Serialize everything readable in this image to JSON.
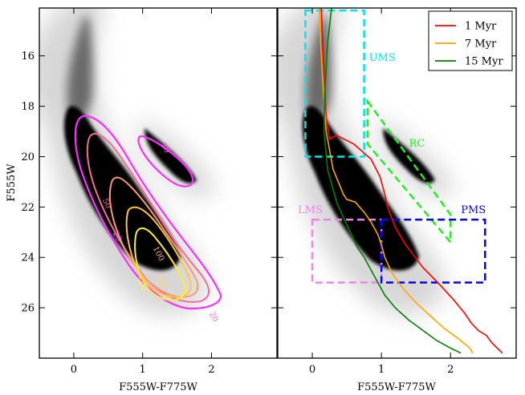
{
  "chart_data": [
    {
      "type": "scatter",
      "panel": "left",
      "title": "",
      "xlabel": "F555W-F775W",
      "ylabel": "F555W",
      "xlim": [
        -0.5,
        2.95
      ],
      "ylim": [
        28,
        14.1
      ],
      "y_inverted": true,
      "xticks": [
        0,
        1,
        2
      ],
      "yticks": [
        16,
        18,
        20,
        22,
        24,
        26
      ],
      "density": "grayscale Hess diagram of stars",
      "contour_labels": [
        {
          "text": "20",
          "x": 1.3,
          "y": 19.7
        },
        {
          "text": "50",
          "x": 0.45,
          "y": 21.9
        },
        {
          "text": "20",
          "x": 0.6,
          "y": 23.2
        },
        {
          "text": "100",
          "x": 1.2,
          "y": 23.9
        },
        {
          "text": "300",
          "x": 1.25,
          "y": 25.0
        },
        {
          "text": "500",
          "x": 0.95,
          "y": 25.1
        },
        {
          "text": "20",
          "x": 2.0,
          "y": 26.4
        }
      ],
      "contour_levels": [
        20,
        50,
        100,
        300,
        500
      ],
      "contour_colors": [
        "#ff2cff",
        "#f86a9a",
        "#fb9a70",
        "#ffc24a",
        "#ffec30"
      ]
    },
    {
      "type": "line",
      "panel": "right",
      "title": "",
      "xlabel": "F555W-F775W",
      "ylabel": "",
      "xlim": [
        -0.5,
        2.95
      ],
      "ylim": [
        28,
        14.1
      ],
      "y_inverted": true,
      "xticks": [
        0,
        1,
        2
      ],
      "legend": "top-right",
      "series": [
        {
          "name": "1 Myr",
          "color": "#ff0000",
          "x": [
            0.13,
            0.15,
            0.18,
            0.2,
            0.25,
            0.35,
            0.6,
            0.85,
            0.98,
            1.05,
            1.1,
            1.2,
            1.35,
            1.6,
            1.85,
            2.05,
            2.2,
            2.3,
            2.4,
            2.52,
            2.6,
            2.75
          ],
          "y": [
            14.1,
            15.5,
            17.0,
            18.5,
            19.3,
            19.15,
            19.5,
            20.1,
            20.8,
            21.5,
            22.1,
            22.8,
            23.5,
            24.4,
            25.1,
            25.7,
            26.2,
            26.6,
            26.9,
            27.1,
            27.4,
            27.8
          ]
        },
        {
          "name": "7 Myr",
          "color": "#ffa500",
          "x": [
            0.1,
            0.12,
            0.15,
            0.2,
            0.3,
            0.45,
            0.5,
            0.62,
            0.75,
            0.85,
            0.95,
            1.0,
            1.05,
            1.15,
            1.3,
            1.5,
            1.7,
            1.9,
            2.1,
            2.28,
            2.32
          ],
          "y": [
            14.1,
            15.5,
            17.0,
            19.0,
            20.5,
            21.5,
            21.7,
            21.8,
            22.2,
            22.6,
            23.1,
            23.5,
            24.0,
            24.6,
            25.2,
            25.8,
            26.3,
            26.8,
            27.2,
            27.6,
            27.8
          ]
        },
        {
          "name": "15 Myr",
          "color": "#008000",
          "x": [
            0.28,
            0.22,
            0.18,
            0.17,
            0.22,
            0.35,
            0.48,
            0.55,
            0.65,
            0.75,
            0.85,
            0.95,
            1.05,
            1.2,
            1.4,
            1.6,
            1.8,
            2.0,
            2.15
          ],
          "y": [
            14.1,
            15.5,
            17.5,
            19.0,
            20.5,
            21.8,
            22.6,
            23.0,
            23.6,
            24.0,
            24.5,
            25.0,
            25.5,
            26.0,
            26.5,
            26.9,
            27.3,
            27.6,
            27.8
          ]
        }
      ],
      "regions": [
        {
          "label": "UMS",
          "color": "#00e5ee",
          "x0": -0.1,
          "x1": 0.75,
          "y0": 14.2,
          "y1": 20.0
        },
        {
          "label": "RC",
          "color": "#22ee22",
          "polygon": [
            [
              0.8,
              17.8
            ],
            [
              2.0,
              22.3
            ],
            [
              2.0,
              23.4
            ],
            [
              0.8,
              19.5
            ]
          ]
        },
        {
          "label": "LMS",
          "color": "#ee82ee",
          "x0": 0.0,
          "x1": 1.0,
          "y0": 22.5,
          "y1": 25.0
        },
        {
          "label": "PMS",
          "color": "#0000ff",
          "x0": 1.0,
          "x1": 2.5,
          "y0": 22.5,
          "y1": 25.0
        }
      ]
    }
  ]
}
